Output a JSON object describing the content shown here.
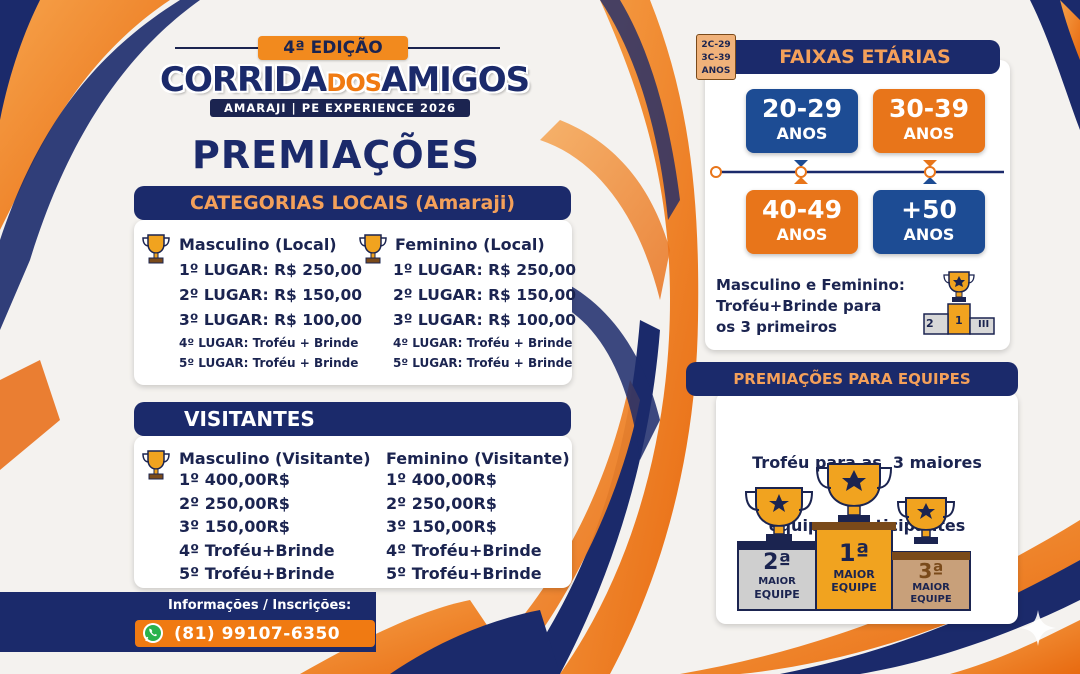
{
  "colors": {
    "navy": "#1b2a6b",
    "orange": "#f07a12",
    "blue": "#1d4c94",
    "white": "#ffffff"
  },
  "header": {
    "edition": "4ª EDIÇÃO",
    "title_part1": "CORRIDA",
    "title_part2": "DOS",
    "title_part3": "AMIGOS",
    "subtitle": "AMARAJI | PE EXPERIENCE 2026",
    "section_title": "PREMIAÇÕES"
  },
  "local": {
    "banner": "CATEGORIAS LOCAIS (Amaraji)",
    "male": {
      "heading": "Masculino (Local)",
      "rows_big": [
        "1º LUGAR: R$ 250,00",
        "2º LUGAR: R$ 150,00",
        "3º LUGAR: R$ 100,00"
      ],
      "rows_small": [
        "4º LUGAR: Troféu + Brinde",
        "5º LUGAR: Troféu + Brinde"
      ]
    },
    "female": {
      "heading": "Feminino (Local)",
      "rows_big": [
        "1º LUGAR: R$ 250,00",
        "2º LUGAR: R$ 150,00",
        "3º LUGAR: R$ 100,00"
      ],
      "rows_small": [
        "4º LUGAR: Troféu + Brinde",
        "5º LUGAR: Troféu + Brinde"
      ]
    }
  },
  "visitors": {
    "banner": "VISITANTES",
    "male": {
      "heading": "Masculino (Visitante)",
      "rows": [
        "1º 400,00R$",
        "2º 250,00R$",
        "3º 150,00R$",
        "4º Troféu+Brinde",
        "5º Troféu+Brinde"
      ]
    },
    "female": {
      "heading": "Feminino (Visitante)",
      "rows": [
        "1º 400,00R$",
        "2º 250,00R$",
        "3º 150,00R$",
        "4º Troféu+Brinde",
        "5º Troféu+Brinde"
      ]
    }
  },
  "contact": {
    "label": "Informações / Inscrições:",
    "phone": "(81) 99107-6350",
    "icon": "whatsapp-icon"
  },
  "age": {
    "banner": "FAIXAS ETÁRIAS",
    "tag_lines": [
      "2C-29",
      "3C-39",
      "ANOS"
    ],
    "groups": [
      {
        "range": "20-29",
        "label": "ANOS",
        "color": "blue"
      },
      {
        "range": "30-39",
        "label": "ANOS",
        "color": "orange"
      },
      {
        "range": "40-49",
        "label": "ANOS",
        "color": "orange"
      },
      {
        "range": "+50",
        "label": "ANOS",
        "color": "blue"
      }
    ],
    "note_lines": [
      "Masculino e Feminino:",
      "Troféu+Brinde para",
      "os 3 primeiros"
    ],
    "podium_numbers": [
      "2",
      "1",
      "III"
    ]
  },
  "teams": {
    "banner": "PREMIAÇÕES PARA EQUIPES",
    "description_lines": [
      "Troféu para as  3 maiores",
      "equipes participantes"
    ],
    "podium": [
      {
        "place": "2ª",
        "line1": "MAIOR",
        "line2": "EQUIPE"
      },
      {
        "place": "1ª",
        "line1": "MAIOR",
        "line2": "EQUIPE"
      },
      {
        "place": "3ª",
        "line1": "MAIOR",
        "line2": "EQUIPE"
      }
    ]
  }
}
